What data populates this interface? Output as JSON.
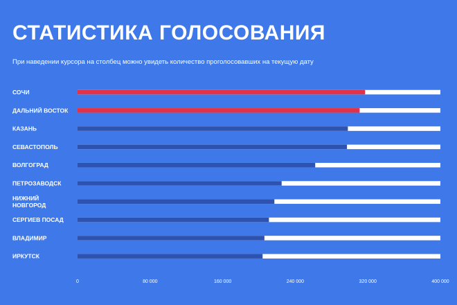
{
  "header": {
    "title": "СТАТИСТИКА ГОЛОСОВАНИЯ",
    "subtitle": "При наведении курсора на столбец можно увидеть количество проголосовавших на текущую дату"
  },
  "colors": {
    "background": "#3f78e8",
    "bar_track": "#ffffff",
    "bar_default": "#2d52b0",
    "bar_highlight": "#e0334a"
  },
  "chart_data": {
    "type": "bar",
    "orientation": "horizontal",
    "title": "СТАТИСТИКА ГОЛОСОВАНИЯ",
    "xlabel": "",
    "ylabel": "",
    "xlim": [
      0,
      400000
    ],
    "ticks": [
      {
        "value": 0,
        "label": "0"
      },
      {
        "value": 80000,
        "label": "80 000"
      },
      {
        "value": 160000,
        "label": "160 000"
      },
      {
        "value": 240000,
        "label": "240 000"
      },
      {
        "value": 320000,
        "label": "320 000"
      },
      {
        "value": 400000,
        "label": "400 000"
      }
    ],
    "categories": [
      [
        "СОЧИ"
      ],
      [
        "ДАЛЬНИЙ ВОСТОК"
      ],
      [
        "КАЗАНЬ"
      ],
      [
        "СЕВАСТОПОЛЬ"
      ],
      [
        "ВОЛГОГРАД"
      ],
      [
        "ПЕТРОЗАВОДСК"
      ],
      [
        "НИЖНИЙ",
        "НОВГОРОД"
      ],
      [
        "СЕРГИЕВ ПОСАД"
      ],
      [
        "ВЛАДИМИР"
      ],
      [
        "ИРКУТСК"
      ]
    ],
    "values": [
      317000,
      311000,
      298000,
      297000,
      262000,
      225000,
      217000,
      211000,
      206000,
      204000
    ],
    "highlighted": [
      true,
      true,
      false,
      false,
      false,
      false,
      false,
      false,
      false,
      false
    ],
    "grid": false
  }
}
